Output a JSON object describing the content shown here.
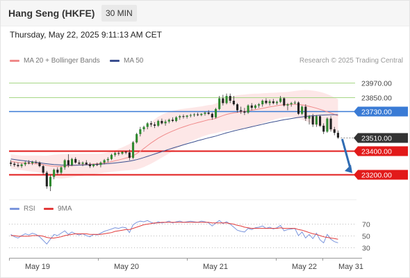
{
  "header": {
    "instrument": "Hang Seng (HKFE)",
    "timeframe_button": "30 MIN"
  },
  "timestamp": "Thursday, May 22, 2025 9:11:13 AM CET",
  "legend": {
    "ma20_label": "MA 20 + Bollinger Bands",
    "ma50_label": "MA 50",
    "copyright": "Research © 2025 Trading Central",
    "rsi_label": "RSI",
    "rsi_ma_label": "9MA"
  },
  "colors": {
    "resistance": "#a6d785",
    "pivot": "#3a7bd5",
    "support": "#e21a1a",
    "current": "#333333",
    "candle_up": "#2f8a2f",
    "candle_down": "#222222",
    "ma20": "#f08a8a",
    "ma50": "#3b4f8f",
    "bollinger_fill": "#fde4e4",
    "rsi_line": "#7b96dd",
    "rsi_ma_line": "#e23a3a",
    "arrow": "#2f6cb3"
  },
  "levels": [
    {
      "label": "23970.00",
      "value": 23970,
      "kind": "resistance"
    },
    {
      "label": "23850.00",
      "value": 23850,
      "kind": "resistance"
    },
    {
      "label": "23730.00",
      "value": 23730,
      "kind": "pivot"
    },
    {
      "label": "23510.00",
      "value": 23510,
      "kind": "current"
    },
    {
      "label": "23400.00",
      "value": 23400,
      "kind": "support"
    },
    {
      "label": "23200.00",
      "value": 23200,
      "kind": "support"
    }
  ],
  "chart_data": {
    "type": "candlestick",
    "x_labels": [
      "May 19",
      "May 20",
      "May 21",
      "May 22",
      "May 31"
    ],
    "price_range": [
      22990,
      24100
    ],
    "candles": [
      [
        23300,
        23320,
        23270,
        23290
      ],
      [
        23290,
        23305,
        23265,
        23280
      ],
      [
        23280,
        23300,
        23260,
        23270
      ],
      [
        23270,
        23295,
        23255,
        23285
      ],
      [
        23285,
        23310,
        23270,
        23300
      ],
      [
        23300,
        23320,
        23285,
        23295
      ],
      [
        23295,
        23315,
        23280,
        23305
      ],
      [
        23305,
        23320,
        23290,
        23300
      ],
      [
        23300,
        23310,
        23260,
        23270
      ],
      [
        23270,
        23280,
        23200,
        23215
      ],
      [
        23215,
        23230,
        23080,
        23100
      ],
      [
        23100,
        23200,
        23060,
        23180
      ],
      [
        23180,
        23250,
        23160,
        23240
      ],
      [
        23240,
        23260,
        23200,
        23215
      ],
      [
        23215,
        23270,
        23200,
        23260
      ],
      [
        23260,
        23330,
        23240,
        23320
      ],
      [
        23320,
        23370,
        23260,
        23280
      ],
      [
        23280,
        23340,
        23270,
        23330
      ],
      [
        23330,
        23345,
        23290,
        23300
      ],
      [
        23300,
        23320,
        23280,
        23290
      ],
      [
        23290,
        23310,
        23270,
        23300
      ],
      [
        23300,
        23320,
        23280,
        23285
      ],
      [
        23285,
        23300,
        23255,
        23270
      ],
      [
        23270,
        23290,
        23260,
        23285
      ],
      [
        23285,
        23300,
        23270,
        23280
      ],
      [
        23280,
        23310,
        23260,
        23300
      ],
      [
        23300,
        23330,
        23285,
        23320
      ],
      [
        23320,
        23345,
        23300,
        23330
      ],
      [
        23330,
        23375,
        23320,
        23365
      ],
      [
        23365,
        23390,
        23350,
        23380
      ],
      [
        23380,
        23395,
        23360,
        23375
      ],
      [
        23375,
        23395,
        23365,
        23390
      ],
      [
        23390,
        23400,
        23370,
        23385
      ],
      [
        23385,
        23410,
        23320,
        23340
      ],
      [
        23340,
        23480,
        23330,
        23470
      ],
      [
        23470,
        23550,
        23460,
        23540
      ],
      [
        23540,
        23600,
        23520,
        23580
      ],
      [
        23580,
        23610,
        23560,
        23600
      ],
      [
        23600,
        23640,
        23580,
        23630
      ],
      [
        23630,
        23650,
        23600,
        23620
      ],
      [
        23620,
        23640,
        23590,
        23610
      ],
      [
        23610,
        23660,
        23600,
        23650
      ],
      [
        23650,
        23670,
        23620,
        23630
      ],
      [
        23630,
        23660,
        23610,
        23645
      ],
      [
        23645,
        23670,
        23630,
        23660
      ],
      [
        23660,
        23680,
        23640,
        23650
      ],
      [
        23650,
        23690,
        23640,
        23680
      ],
      [
        23680,
        23700,
        23660,
        23690
      ],
      [
        23690,
        23705,
        23670,
        23685
      ],
      [
        23685,
        23700,
        23670,
        23695
      ],
      [
        23695,
        23710,
        23680,
        23700
      ],
      [
        23700,
        23715,
        23685,
        23705
      ],
      [
        23705,
        23720,
        23690,
        23700
      ],
      [
        23700,
        23715,
        23690,
        23710
      ],
      [
        23710,
        23730,
        23695,
        23720
      ],
      [
        23720,
        23740,
        23700,
        23710
      ],
      [
        23710,
        23720,
        23660,
        23680
      ],
      [
        23680,
        23760,
        23670,
        23750
      ],
      [
        23750,
        23860,
        23740,
        23840
      ],
      [
        23840,
        23870,
        23780,
        23800
      ],
      [
        23800,
        23880,
        23790,
        23860
      ],
      [
        23860,
        23880,
        23800,
        23820
      ],
      [
        23820,
        23860,
        23780,
        23790
      ],
      [
        23790,
        23800,
        23720,
        23740
      ],
      [
        23740,
        23770,
        23710,
        23730
      ],
      [
        23730,
        23760,
        23700,
        23720
      ],
      [
        23720,
        23790,
        23710,
        23780
      ],
      [
        23780,
        23800,
        23740,
        23760
      ],
      [
        23760,
        23790,
        23750,
        23780
      ],
      [
        23780,
        23800,
        23760,
        23790
      ],
      [
        23790,
        23830,
        23770,
        23820
      ],
      [
        23820,
        23840,
        23790,
        23800
      ],
      [
        23800,
        23830,
        23780,
        23815
      ],
      [
        23815,
        23835,
        23790,
        23800
      ],
      [
        23800,
        23820,
        23785,
        23810
      ],
      [
        23810,
        23860,
        23800,
        23840
      ],
      [
        23840,
        23850,
        23770,
        23780
      ],
      [
        23780,
        23800,
        23740,
        23790
      ],
      [
        23790,
        23810,
        23770,
        23800
      ],
      [
        23800,
        23820,
        23790,
        23805
      ],
      [
        23805,
        23815,
        23700,
        23710
      ],
      [
        23710,
        23780,
        23700,
        23770
      ],
      [
        23770,
        23790,
        23650,
        23670
      ],
      [
        23670,
        23700,
        23620,
        23690
      ],
      [
        23690,
        23710,
        23600,
        23620
      ],
      [
        23620,
        23700,
        23600,
        23690
      ],
      [
        23690,
        23700,
        23600,
        23610
      ],
      [
        23610,
        23630,
        23540,
        23560
      ],
      [
        23560,
        23680,
        23550,
        23670
      ],
      [
        23670,
        23690,
        23560,
        23580
      ],
      [
        23580,
        23600,
        23530,
        23550
      ],
      [
        23550,
        23570,
        23500,
        23510
      ]
    ],
    "ma20": [
      23310,
      23305,
      23300,
      23298,
      23296,
      23294,
      23292,
      23290,
      23288,
      23282,
      23276,
      23272,
      23270,
      23268,
      23268,
      23270,
      23272,
      23275,
      23278,
      23280,
      23282,
      23284,
      23286,
      23288,
      23290,
      23293,
      23297,
      23302,
      23308,
      23315,
      23322,
      23330,
      23338,
      23346,
      23358,
      23375,
      23395,
      23418,
      23442,
      23465,
      23485,
      23505,
      23522,
      23538,
      23552,
      23565,
      23578,
      23590,
      23600,
      23610,
      23620,
      23628,
      23636,
      23644,
      23652,
      23660,
      23664,
      23672,
      23684,
      23695,
      23705,
      23712,
      23718,
      23722,
      23726,
      23730,
      23735,
      23740,
      23745,
      23750,
      23756,
      23762,
      23768,
      23773,
      23778,
      23783,
      23786,
      23788,
      23790,
      23790,
      23788,
      23785,
      23780,
      23773,
      23765,
      23757,
      23748,
      23738,
      23727,
      23716,
      23705,
      23693
    ],
    "ma50": [
      23330,
      23326,
      23322,
      23318,
      23314,
      23310,
      23306,
      23302,
      23298,
      23294,
      23290,
      23287,
      23284,
      23282,
      23280,
      23279,
      23278,
      23278,
      23278,
      23279,
      23280,
      23281,
      23282,
      23283,
      23285,
      23287,
      23289,
      23291,
      23294,
      23297,
      23300,
      23304,
      23308,
      23312,
      23318,
      23325,
      23333,
      23342,
      23352,
      23362,
      23372,
      23382,
      23392,
      23402,
      23412,
      23422,
      23431,
      23440,
      23449,
      23458,
      23467,
      23475,
      23484,
      23492,
      23500,
      23508,
      23515,
      23523,
      23532,
      23541,
      23550,
      23558,
      23566,
      23573,
      23580,
      23587,
      23594,
      23601,
      23608,
      23615,
      23622,
      23629,
      23636,
      23642,
      23648,
      23654,
      23660,
      23665,
      23670,
      23675,
      23680,
      23684,
      23688,
      23691,
      23694,
      23696,
      23698,
      23700,
      23701,
      23702,
      23703,
      23703
    ],
    "bb_width": [
      60,
      60,
      62,
      62,
      64,
      66,
      68,
      70,
      72,
      76,
      82,
      90,
      96,
      100,
      102,
      102,
      100,
      98,
      96,
      94,
      92,
      90,
      88,
      86,
      84,
      82,
      82,
      84,
      86,
      90,
      94,
      98,
      104,
      110,
      120,
      132,
      144,
      156,
      166,
      174,
      178,
      180,
      180,
      178,
      174,
      170,
      164,
      158,
      152,
      146,
      140,
      136,
      132,
      128,
      126,
      124,
      122,
      124,
      128,
      132,
      136,
      140,
      142,
      144,
      144,
      142,
      140,
      138,
      134,
      130,
      126,
      122,
      118,
      114,
      110,
      108,
      106,
      106,
      108,
      112,
      118,
      124,
      130,
      136,
      140,
      144,
      146,
      148,
      148,
      146,
      144,
      140
    ],
    "rsi": [
      52,
      48,
      46,
      50,
      53,
      51,
      54,
      52,
      48,
      42,
      36,
      44,
      52,
      50,
      54,
      58,
      52,
      56,
      53,
      51,
      53,
      50,
      48,
      52,
      51,
      54,
      57,
      59,
      61,
      63,
      62,
      64,
      63,
      55,
      68,
      72,
      74,
      73,
      75,
      72,
      70,
      73,
      71,
      72,
      74,
      71,
      73,
      74,
      72,
      73,
      74,
      73,
      72,
      74,
      73,
      71,
      66,
      71,
      75,
      70,
      73,
      69,
      64,
      59,
      57,
      56,
      62,
      60,
      63,
      64,
      66,
      62,
      64,
      61,
      63,
      67,
      58,
      60,
      61,
      62,
      50,
      56,
      46,
      52,
      45,
      54,
      43,
      38,
      52,
      44,
      40,
      38
    ],
    "rsi_ma": [
      50,
      50,
      49,
      49,
      49,
      49,
      50,
      50,
      50,
      49,
      47,
      46,
      46,
      47,
      48,
      50,
      51,
      52,
      53,
      53,
      53,
      53,
      52,
      52,
      52,
      52,
      53,
      54,
      55,
      57,
      58,
      59,
      60,
      60,
      62,
      64,
      66,
      68,
      69,
      70,
      71,
      71,
      72,
      72,
      72,
      72,
      72,
      72,
      72,
      72,
      72,
      72,
      72,
      72,
      72,
      72,
      71,
      71,
      71,
      71,
      71,
      70,
      69,
      67,
      66,
      64,
      63,
      62,
      62,
      62,
      62,
      62,
      62,
      62,
      62,
      63,
      62,
      62,
      62,
      62,
      60,
      59,
      57,
      55,
      53,
      52,
      50,
      48,
      47,
      46,
      45,
      44
    ],
    "rsi_scale": [
      70,
      50,
      30
    ],
    "projection": {
      "from": 23510,
      "to": 23200
    }
  }
}
